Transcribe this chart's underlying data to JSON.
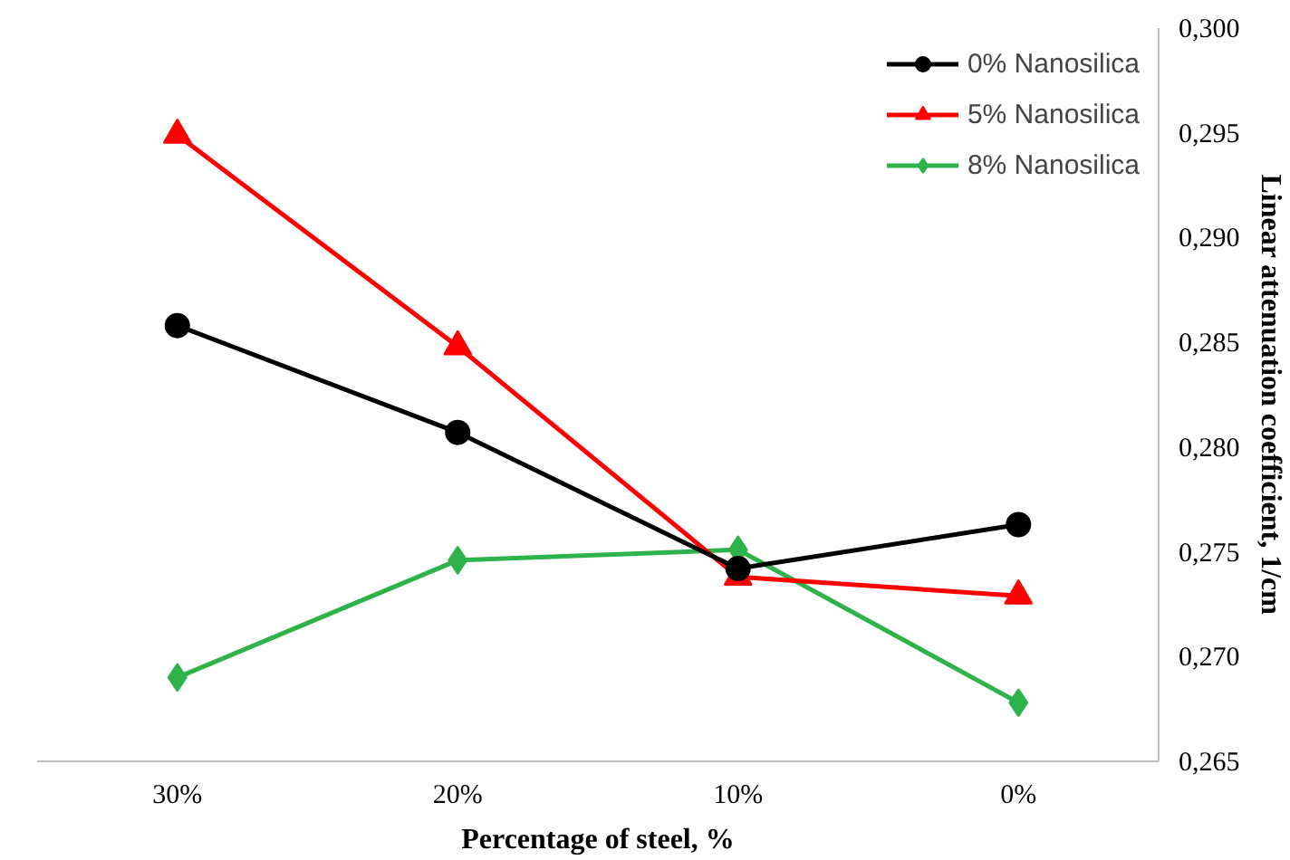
{
  "chart_data": {
    "type": "line",
    "xlabel": "Percentage of steel, %",
    "ylabel": "Linear attenuation coefficient, 1/cm",
    "categories": [
      "30%",
      "20%",
      "10%",
      "0%"
    ],
    "series": [
      {
        "name": "0% Nanosilica",
        "color": "#000000",
        "marker": "circle",
        "values": [
          0.2858,
          0.2807,
          0.2742,
          0.2763
        ]
      },
      {
        "name": "5% Nanosilica",
        "color": "#ff0000",
        "marker": "triangle",
        "values": [
          0.2949,
          0.2848,
          0.2738,
          0.2729
        ]
      },
      {
        "name": "8% Nanosilica",
        "color": "#2eb34a",
        "marker": "diamond",
        "values": [
          0.269,
          0.2746,
          0.2751,
          0.2678
        ]
      }
    ],
    "ylim": [
      0.265,
      0.3
    ],
    "yticks": [
      {
        "value": 0.265,
        "label": "0,265"
      },
      {
        "value": 0.27,
        "label": "0,270"
      },
      {
        "value": 0.275,
        "label": "0,275"
      },
      {
        "value": 0.28,
        "label": "0,280"
      },
      {
        "value": 0.285,
        "label": "0,285"
      },
      {
        "value": 0.29,
        "label": "0,290"
      },
      {
        "value": 0.295,
        "label": "0,295"
      },
      {
        "value": 0.3,
        "label": "0,300"
      }
    ],
    "grid": false,
    "legend": "top right"
  }
}
